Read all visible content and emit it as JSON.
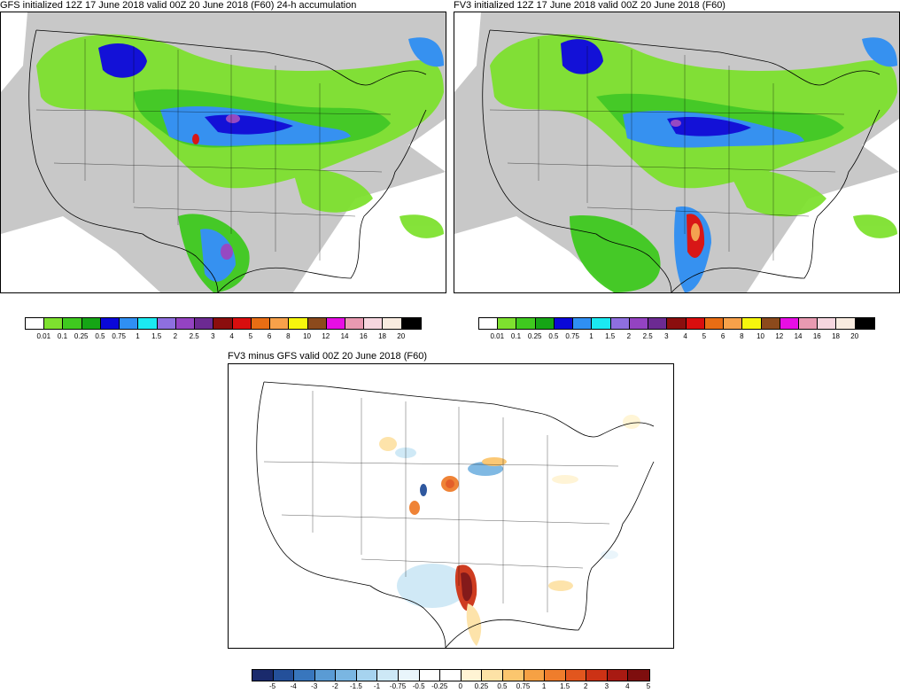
{
  "panels": {
    "gfs": {
      "title": "GFS initialized 12Z 17 June 2018 valid 00Z 20 June 2018 (F60) 24-h accumulation"
    },
    "fv3": {
      "title": "FV3 initialized 12Z 17 June 2018 valid 00Z 20 June 2018 (F60)"
    },
    "diff": {
      "title": "FV3 minus GFS valid 00Z 20 June 2018 (F60)"
    }
  },
  "precip_scale": {
    "colors": [
      "#ffffff",
      "#7ee12f",
      "#3fca1f",
      "#15a515",
      "#0a08d8",
      "#2f8ff3",
      "#1be9f2",
      "#8e6fe0",
      "#9443c2",
      "#6c2a92",
      "#8b0e0e",
      "#d90e0e",
      "#e86d14",
      "#f7a14a",
      "#f7f60d",
      "#8c4a1c",
      "#e70ee4",
      "#e89ab1",
      "#f6d6df",
      "#f8ebe0",
      "#000000"
    ],
    "labels": [
      "0.01",
      "0.1",
      "0.25",
      "0.5",
      "0.75",
      "1",
      "1.5",
      "2",
      "2.5",
      "3",
      "4",
      "5",
      "6",
      "8",
      "10",
      "12",
      "14",
      "16",
      "18",
      "20"
    ]
  },
  "diff_scale": {
    "colors": [
      "#1a2a6c",
      "#24509a",
      "#3876bd",
      "#5a9bd4",
      "#7ab6e2",
      "#a6d3ef",
      "#cde8f6",
      "#e9f5fb",
      "#ffffff",
      "#ffffff",
      "#fff4d4",
      "#fde2a6",
      "#fbc66e",
      "#f6a144",
      "#ef7d2c",
      "#e2561e",
      "#cc3215",
      "#a81a12",
      "#7e0e0e"
    ],
    "labels": [
      "-5",
      "-4",
      "-3",
      "-2",
      "-1.5",
      "-1",
      "-0.75",
      "-0.5",
      "-0.25",
      "0",
      "0.25",
      "0.5",
      "0.75",
      "1",
      "1.5",
      "2",
      "3",
      "4",
      "5"
    ]
  }
}
